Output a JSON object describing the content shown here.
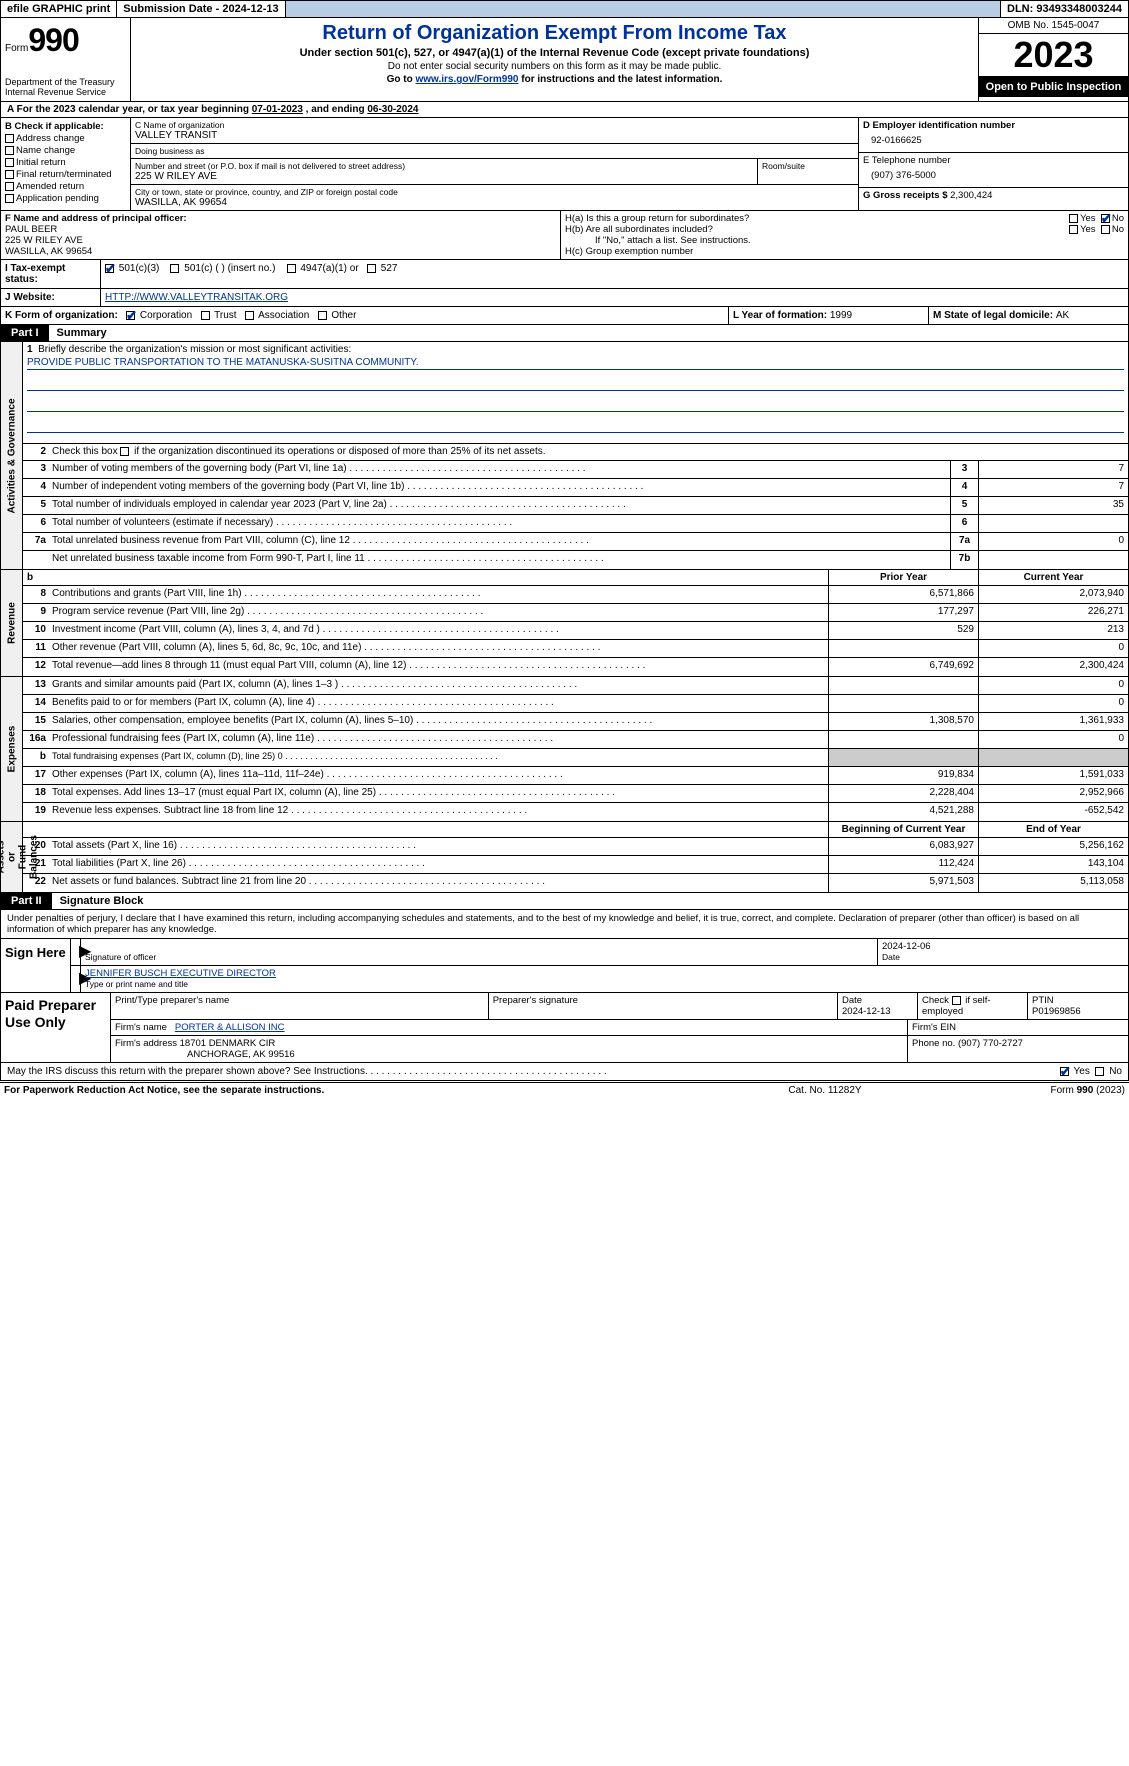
{
  "topbar": {
    "efile": "efile GRAPHIC print",
    "submission_label": "Submission Date - ",
    "submission_date": "2024-12-13",
    "dln_label": "DLN: ",
    "dln": "93493348003244"
  },
  "header": {
    "form_word": "Form",
    "form_num": "990",
    "dept": "Department of the Treasury\nInternal Revenue Service",
    "title": "Return of Organization Exempt From Income Tax",
    "sub1": "Under section 501(c), 527, or 4947(a)(1) of the Internal Revenue Code (except private foundations)",
    "sub2": "Do not enter social security numbers on this form as it may be made public.",
    "sub3_prefix": "Go to ",
    "sub3_link": "www.irs.gov/Form990",
    "sub3_suffix": " for instructions and the latest information.",
    "omb": "OMB No. 1545-0047",
    "year": "2023",
    "open": "Open to Public Inspection"
  },
  "period": {
    "text_a": "A For the 2023 calendar year, or tax year beginning ",
    "begin": "07-01-2023",
    "text_b": "  , and ending ",
    "end": "06-30-2024"
  },
  "box_b": {
    "label": "B Check if applicable:",
    "items": [
      "Address change",
      "Name change",
      "Initial return",
      "Final return/terminated",
      "Amended return",
      "Application pending"
    ]
  },
  "box_c": {
    "name_label": "C Name of organization",
    "name": "VALLEY TRANSIT",
    "dba_label": "Doing business as",
    "dba": "",
    "street_label": "Number and street (or P.O. box if mail is not delivered to street address)",
    "room_label": "Room/suite",
    "street": "225 W RILEY AVE",
    "city_label": "City or town, state or province, country, and ZIP or foreign postal code",
    "city": "WASILLA, AK  99654"
  },
  "box_d": {
    "label": "D Employer identification number",
    "val": "92-0166625"
  },
  "box_e": {
    "label": "E Telephone number",
    "val": "(907) 376-5000"
  },
  "box_g": {
    "label": "G Gross receipts $ ",
    "val": "2,300,424"
  },
  "box_f": {
    "label": "F  Name and address of principal officer:",
    "name": "PAUL BEER",
    "street": "225 W RILEY AVE",
    "city": "WASILLA, AK  99654"
  },
  "box_h": {
    "ha": "H(a)  Is this a group return for subordinates?",
    "hb": "H(b)  Are all subordinates included?",
    "hb_note": "If \"No,\" attach a list. See instructions.",
    "hc": "H(c)  Group exemption number  ",
    "yes": "Yes",
    "no": "No",
    "ha_no_checked": true
  },
  "row_i": {
    "label": "I    Tax-exempt status:",
    "c3": "501(c)(3)",
    "c3_checked": true,
    "c": "501(c) (   ) (insert no.)",
    "a1": "4947(a)(1) or",
    "s527": "527"
  },
  "row_j": {
    "label": "J    Website: ",
    "val": "HTTP://WWW.VALLEYTRANSITAK.ORG"
  },
  "row_k": {
    "label": "K Form of organization:",
    "corp": "Corporation",
    "corp_checked": true,
    "trust": "Trust",
    "assoc": "Association",
    "other": "Other"
  },
  "row_l": {
    "label": "L Year of formation: ",
    "val": "1999"
  },
  "row_m": {
    "label": "M State of legal domicile: ",
    "val": "AK"
  },
  "parts": {
    "p1": "Part I",
    "p1t": "Summary",
    "p2": "Part II",
    "p2t": "Signature Block"
  },
  "vtabs": {
    "gov": "Activities & Governance",
    "rev": "Revenue",
    "exp": "Expenses",
    "net": "Net Assets or\nFund Balances"
  },
  "summary": {
    "l1_label": "Briefly describe the organization's mission or most significant activities:",
    "l1_val": "PROVIDE PUBLIC TRANSPORTATION TO THE MATANUSKA-SUSITNA COMMUNITY.",
    "l2": "Check this box       if the organization discontinued its operations or disposed of more than 25% of its net assets.",
    "lines_gov": [
      {
        "n": "3",
        "t": "Number of voting members of the governing body (Part VI, line 1a)",
        "bn": "3",
        "v": "7"
      },
      {
        "n": "4",
        "t": "Number of independent voting members of the governing body (Part VI, line 1b)",
        "bn": "4",
        "v": "7"
      },
      {
        "n": "5",
        "t": "Total number of individuals employed in calendar year 2023 (Part V, line 2a)",
        "bn": "5",
        "v": "35"
      },
      {
        "n": "6",
        "t": "Total number of volunteers (estimate if necessary)",
        "bn": "6",
        "v": ""
      },
      {
        "n": "7a",
        "t": "Total unrelated business revenue from Part VIII, column (C), line 12",
        "bn": "7a",
        "v": "0"
      },
      {
        "n": "",
        "t": "Net unrelated business taxable income from Form 990-T, Part I, line 11",
        "bn": "7b",
        "v": ""
      }
    ],
    "hdr_prior": "Prior Year",
    "hdr_curr": "Current Year",
    "lines_rev": [
      {
        "n": "8",
        "t": "Contributions and grants (Part VIII, line 1h)",
        "p": "6,571,866",
        "c": "2,073,940"
      },
      {
        "n": "9",
        "t": "Program service revenue (Part VIII, line 2g)",
        "p": "177,297",
        "c": "226,271"
      },
      {
        "n": "10",
        "t": "Investment income (Part VIII, column (A), lines 3, 4, and 7d )",
        "p": "529",
        "c": "213"
      },
      {
        "n": "11",
        "t": "Other revenue (Part VIII, column (A), lines 5, 6d, 8c, 9c, 10c, and 11e)",
        "p": "",
        "c": "0"
      },
      {
        "n": "12",
        "t": "Total revenue—add lines 8 through 11 (must equal Part VIII, column (A), line 12)",
        "p": "6,749,692",
        "c": "2,300,424"
      }
    ],
    "lines_exp": [
      {
        "n": "13",
        "t": "Grants and similar amounts paid (Part IX, column (A), lines 1–3 )",
        "p": "",
        "c": "0"
      },
      {
        "n": "14",
        "t": "Benefits paid to or for members (Part IX, column (A), line 4)",
        "p": "",
        "c": "0"
      },
      {
        "n": "15",
        "t": "Salaries, other compensation, employee benefits (Part IX, column (A), lines 5–10)",
        "p": "1,308,570",
        "c": "1,361,933"
      },
      {
        "n": "16a",
        "t": "Professional fundraising fees (Part IX, column (A), line 11e)",
        "p": "",
        "c": "0"
      },
      {
        "n": "b",
        "t": "Total fundraising expenses (Part IX, column (D), line 25) 0",
        "p": "SHADE",
        "c": "SHADE",
        "small": true
      },
      {
        "n": "17",
        "t": "Other expenses (Part IX, column (A), lines 11a–11d, 11f–24e)",
        "p": "919,834",
        "c": "1,591,033"
      },
      {
        "n": "18",
        "t": "Total expenses. Add lines 13–17 (must equal Part IX, column (A), line 25)",
        "p": "2,228,404",
        "c": "2,952,966"
      },
      {
        "n": "19",
        "t": "Revenue less expenses. Subtract line 18 from line 12",
        "p": "4,521,288",
        "c": "-652,542"
      }
    ],
    "hdr_begin": "Beginning of Current Year",
    "hdr_end": "End of Year",
    "lines_net": [
      {
        "n": "20",
        "t": "Total assets (Part X, line 16)",
        "p": "6,083,927",
        "c": "5,256,162"
      },
      {
        "n": "21",
        "t": "Total liabilities (Part X, line 26)",
        "p": "112,424",
        "c": "143,104"
      },
      {
        "n": "22",
        "t": "Net assets or fund balances. Subtract line 21 from line 20",
        "p": "5,971,503",
        "c": "5,113,058"
      }
    ]
  },
  "sig": {
    "penalty": "Under penalties of perjury, I declare that I have examined this return, including accompanying schedules and statements, and to the best of my knowledge and belief, it is true, correct, and complete. Declaration of preparer (other than officer) is based on all information of which preparer has any knowledge.",
    "sign_here": "Sign Here",
    "sig_label": "Signature of officer",
    "date_label": "Date",
    "date": "2024-12-06",
    "name_title": "JENNIFER BUSCH  EXECUTIVE DIRECTOR",
    "type_label": "Type or print name and title"
  },
  "prep": {
    "label": "Paid Preparer Use Only",
    "h_name": "Print/Type preparer's name",
    "h_sig": "Preparer's signature",
    "h_date": "Date",
    "date": "2024-12-13",
    "h_self": "Check       if self-employed",
    "h_ptin": "PTIN",
    "ptin": "P01969856",
    "firm_name_label": "Firm's name    ",
    "firm_name": "PORTER & ALLISON INC",
    "firm_ein_label": "Firm's EIN  ",
    "firm_addr_label": "Firm's address ",
    "firm_addr1": "18701 DENMARK CIR",
    "firm_addr2": "ANCHORAGE, AK  99516",
    "phone_label": "Phone no. ",
    "phone": "(907) 770-2727"
  },
  "discuss": {
    "text": "May the IRS discuss this return with the preparer shown above? See Instructions.",
    "yes": "Yes",
    "no": "No",
    "yes_checked": true
  },
  "footer": {
    "left": "For Paperwork Reduction Act Notice, see the separate instructions.",
    "mid": "Cat. No. 11282Y",
    "right_a": "Form ",
    "right_b": "990",
    "right_c": " (2023)"
  }
}
